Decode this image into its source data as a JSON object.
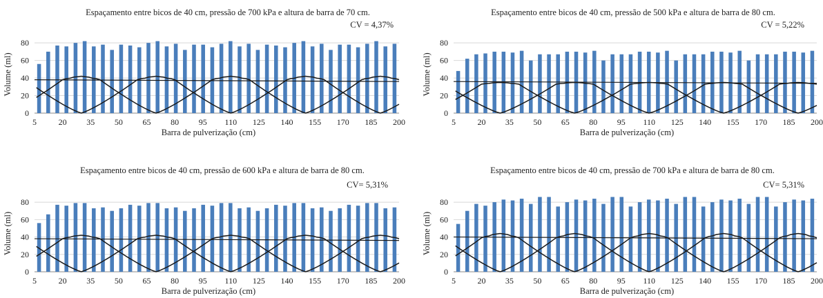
{
  "chart_data": [
    {
      "type": "bar",
      "title": "Espaçamento entre bicos de 40 cm, pressão de 700 kPa e altura de barra de 70 cm.",
      "cv_label": "CV = 4,37%",
      "xlabel": "Barra de pulverização (cm)",
      "ylabel": "Volume (ml)",
      "ylim": [
        0,
        80
      ],
      "yticks": [
        0,
        20,
        40,
        60,
        80
      ],
      "xticks": [
        "5",
        "20",
        "35",
        "50",
        "65",
        "80",
        "95",
        "110",
        "125",
        "140",
        "155",
        "170",
        "185",
        "200"
      ],
      "x_start": 5,
      "x_step": 5,
      "x_end": 200,
      "values": [
        56,
        70,
        77,
        76,
        80,
        82,
        76,
        78,
        72,
        78,
        77,
        75,
        80,
        82,
        76,
        79,
        72,
        78,
        78,
        75,
        79,
        82,
        76,
        79,
        72,
        78,
        77,
        75,
        80,
        82,
        76,
        79,
        72,
        78,
        78,
        75,
        79,
        82,
        76,
        79
      ],
      "nozzle_peak": 42,
      "nozzle_profile_level": 38,
      "mean_line": 38
    },
    {
      "type": "bar",
      "title": "Espaçamento entre bicos de 40 cm, pressão de 500 kPa e altura de barra de 80 cm.",
      "cv_label": "CV = 5,22%",
      "xlabel": "Barra de pulverização (cm)",
      "ylabel": "Volume (ml)",
      "ylim": [
        0,
        80
      ],
      "yticks": [
        0,
        20,
        40,
        60,
        80
      ],
      "xticks": [
        "5",
        "20",
        "35",
        "50",
        "65",
        "80",
        "95",
        "110",
        "125",
        "140",
        "155",
        "170",
        "185",
        "200"
      ],
      "x_start": 5,
      "x_step": 5,
      "x_end": 200,
      "values": [
        48,
        62,
        67,
        68,
        70,
        70,
        69,
        71,
        60,
        67,
        67,
        67,
        70,
        70,
        69,
        71,
        60,
        67,
        67,
        67,
        70,
        70,
        69,
        71,
        60,
        67,
        67,
        67,
        70,
        70,
        69,
        71,
        60,
        67,
        67,
        67,
        70,
        70,
        69,
        71
      ],
      "nozzle_peak": 35,
      "nozzle_profile_level": 33,
      "mean_line": 36
    },
    {
      "type": "bar",
      "title": "Espaçamento entre bicos de 40 cm, pressão de 600 kPa e altura de barra de 80 cm.",
      "cv_label": "CV= 5,31%",
      "xlabel": "Barra de pulverização (cm)",
      "ylabel": "Volume (ml)",
      "ylim": [
        0,
        80
      ],
      "yticks": [
        0,
        20,
        40,
        60,
        80
      ],
      "xticks": [
        "5",
        "20",
        "35",
        "50",
        "65",
        "80",
        "95",
        "110",
        "125",
        "140",
        "155",
        "170",
        "185",
        "200"
      ],
      "x_start": 5,
      "x_step": 5,
      "x_end": 200,
      "values": [
        56,
        66,
        77,
        76,
        79,
        79,
        73,
        74,
        70,
        73,
        77,
        76,
        79,
        79,
        73,
        74,
        70,
        73,
        77,
        76,
        79,
        79,
        73,
        74,
        70,
        73,
        77,
        76,
        79,
        79,
        73,
        74,
        70,
        73,
        77,
        76,
        79,
        79,
        73,
        74
      ],
      "nozzle_peak": 42,
      "nozzle_profile_level": 38,
      "mean_line": 38
    },
    {
      "type": "bar",
      "title": "Espaçamento entre bicos de 40 cm, pressão de 700 kPa e altura de barra de 80 cm.",
      "cv_label": "CV= 5,31%",
      "xlabel": "Barra de pulverização (cm)",
      "ylabel": "Volume (ml)",
      "ylim": [
        0,
        80
      ],
      "yticks": [
        0,
        20,
        40,
        60,
        80
      ],
      "xticks": [
        "5",
        "20",
        "35",
        "50",
        "65",
        "80",
        "95",
        "110",
        "125",
        "140",
        "155",
        "170",
        "185",
        "200"
      ],
      "x_start": 5,
      "x_step": 5,
      "x_end": 200,
      "values": [
        55,
        70,
        78,
        76,
        80,
        83,
        82,
        84,
        78,
        86,
        86,
        75,
        80,
        83,
        82,
        84,
        78,
        86,
        86,
        75,
        80,
        83,
        82,
        84,
        78,
        86,
        86,
        75,
        80,
        83,
        82,
        84,
        78,
        86,
        86,
        75,
        80,
        83,
        82,
        84
      ],
      "nozzle_peak": 44,
      "nozzle_profile_level": 39,
      "mean_line": 40
    }
  ]
}
